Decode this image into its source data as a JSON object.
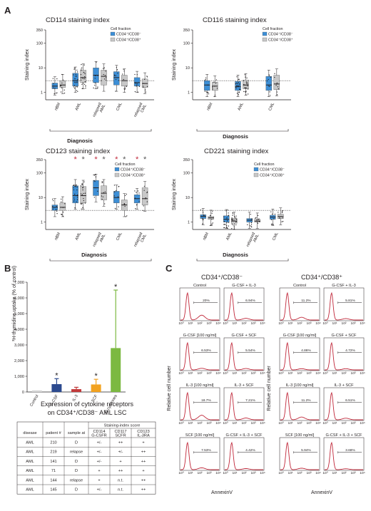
{
  "panels": {
    "A": {
      "label": "A",
      "legend_title": "Cell fraction",
      "legend_items": [
        "CD34⁺/CD38⁻",
        "CD34⁺/CD38⁺"
      ],
      "y_axis_label": "Staining index",
      "y_ticks": [
        "350",
        "100",
        "10",
        "1"
      ],
      "x_title": "Diagnosis",
      "colors": {
        "cd38neg": "#3d8fd6",
        "cd38pos": "#c8c8c8"
      },
      "subplots": [
        {
          "title": "CD114 staining index",
          "groups": [
            "nBM",
            "AML",
            "relapsed AML",
            "CML",
            "relapsed CML"
          ],
          "significant": [
            false,
            false,
            false,
            false,
            false
          ],
          "boxes": [
            {
              "neg": [
                1.4,
                1.8,
                2.4
              ],
              "pos": [
                1.6,
                2.0,
                3.0
              ]
            },
            {
              "neg": [
                1.8,
                3.0,
                6.0
              ],
              "pos": [
                2.5,
                4.0,
                8.0
              ]
            },
            {
              "neg": [
                2.5,
                5.0,
                10.0
              ],
              "pos": [
                2.0,
                4.5,
                8.0
              ]
            },
            {
              "neg": [
                2.0,
                4.0,
                7.0
              ],
              "pos": [
                1.8,
                3.0,
                5.0
              ]
            },
            {
              "neg": [
                1.8,
                2.5,
                4.0
              ],
              "pos": [
                1.6,
                2.3,
                3.5
              ]
            }
          ]
        },
        {
          "title": "CD116 staining index",
          "groups": [
            "nBM",
            "AML",
            "CML"
          ],
          "significant": [
            false,
            false,
            false
          ],
          "boxes": [
            {
              "neg": [
                1.2,
                2.0,
                3.0
              ],
              "pos": [
                1.2,
                1.8,
                2.6
              ]
            },
            {
              "neg": [
                1.2,
                1.7,
                2.8
              ],
              "pos": [
                1.4,
                2.0,
                3.2
              ]
            },
            {
              "neg": [
                1.2,
                2.0,
                4.5
              ],
              "pos": [
                1.3,
                2.2,
                5.0
              ]
            }
          ]
        },
        {
          "title": "CD123 staining index",
          "groups": [
            "nBM",
            "AML",
            "relapsed AML",
            "CML",
            "relapsed CML"
          ],
          "significant": [
            false,
            true,
            true,
            true,
            true
          ],
          "boxes": [
            {
              "neg": [
                3.0,
                4.0,
                5.0
              ],
              "pos": [
                3.0,
                4.0,
                6.0
              ]
            },
            {
              "neg": [
                6.0,
                12.0,
                30.0
              ],
              "pos": [
                6.0,
                12.0,
                28.0
              ]
            },
            {
              "neg": [
                12.0,
                25.0,
                50.0
              ],
              "pos": [
                8.0,
                15.0,
                30.0
              ]
            },
            {
              "neg": [
                6.0,
                10.0,
                18.0
              ],
              "pos": [
                3.0,
                5.0,
                8.0
              ]
            },
            {
              "neg": [
                6.0,
                9.0,
                13.0
              ],
              "pos": [
                5.0,
                9.0,
                25.0
              ]
            }
          ]
        },
        {
          "title": "CD221 staining index",
          "groups": [
            "nBM",
            "AML",
            "relapsed AML",
            "CML"
          ],
          "significant": [
            false,
            false,
            false,
            false
          ],
          "boxes": [
            {
              "neg": [
                1.4,
                1.7,
                2.0
              ],
              "pos": [
                1.3,
                1.5,
                1.7
              ]
            },
            {
              "neg": [
                1.0,
                1.3,
                1.8
              ],
              "pos": [
                0.9,
                1.1,
                1.4
              ]
            },
            {
              "neg": [
                1.0,
                1.2,
                1.4
              ],
              "pos": [
                1.0,
                1.1,
                1.3
              ]
            },
            {
              "neg": [
                1.3,
                1.6,
                1.9
              ],
              "pos": [
                1.4,
                1.7,
                2.1
              ]
            }
          ]
        }
      ]
    },
    "B": {
      "label": "B",
      "ylabel": "³H-thymidine uptake (% of control)",
      "yticks": [
        "7,000",
        "6,000",
        "5,000",
        "4,000",
        "3,000",
        "2,000",
        "1,000",
        "0"
      ],
      "table_title_line1": "Expression of cytokine receptors",
      "table_title_line2": "on CD34⁺/CD38⁻ AML LSC",
      "staining_header": "Staining-index score",
      "columns": [
        "disease",
        "patient #",
        "sample at",
        "CD114 G-CSFR",
        "CD117 SCFR",
        "CD123 IL-3RA"
      ],
      "rows": [
        [
          "AML",
          "210",
          "D",
          "+/-",
          "++",
          "+"
        ],
        [
          "AML",
          "219",
          "relapse",
          "+/-",
          "+/-",
          "++"
        ],
        [
          "AML",
          "141",
          "D",
          "+/-",
          "+",
          "++"
        ],
        [
          "AML",
          "71",
          "D",
          "+",
          "++",
          "+"
        ],
        [
          "AML",
          "144",
          "relapse",
          "+",
          "n.t.",
          "++"
        ],
        [
          "AML",
          "145",
          "D",
          "+/-",
          "n.t.",
          "++"
        ]
      ]
    },
    "C": {
      "label": "C",
      "y_axis_label": "Relative cell number",
      "x_axis_label": "AnnexinV",
      "x_ticks": [
        "10⁰",
        "10¹",
        "10²",
        "10³",
        "10⁴"
      ],
      "columns": [
        {
          "title": "CD34⁺/CD38⁻",
          "histograms": [
            {
              "label": "Control",
              "pct": "20%"
            },
            {
              "label": "G-CSF + IL-3",
              "pct": "6.94%"
            },
            {
              "label": "G-CSF [100 ng/ml]",
              "pct": "6.53%"
            },
            {
              "label": "G-CSF + SCF",
              "pct": "5.54%"
            },
            {
              "label": "IL-3 [100 ng/ml]",
              "pct": "18.7%"
            },
            {
              "label": "IL-3 + SCF",
              "pct": "7.21%"
            },
            {
              "label": "SCF [100 ng/ml]",
              "pct": "7.53%"
            },
            {
              "label": "G-CSF + IL-3 + SCF",
              "pct": "4.42%"
            }
          ]
        },
        {
          "title": "CD34⁺/CD38⁺",
          "histograms": [
            {
              "label": "Control",
              "pct": "11.2%"
            },
            {
              "label": "G-CSF + IL-3",
              "pct": "5.81%"
            },
            {
              "label": "G-CSF [100 ng/ml]",
              "pct": "4.86%"
            },
            {
              "label": "G-CSF + SCF",
              "pct": "4.72%"
            },
            {
              "label": "IL-3 [100 ng/ml]",
              "pct": "11.2%"
            },
            {
              "label": "IL-3 + SCF",
              "pct": "6.51%"
            },
            {
              "label": "SCF [100 ng/ml]",
              "pct": "5.94%"
            },
            {
              "label": "G-CSF + IL-3 + SCF",
              "pct": "3.68%"
            }
          ]
        }
      ]
    }
  },
  "chart_data": [
    {
      "type": "bar",
      "categories": [
        "Control",
        "G-CSF",
        "IL-3",
        "SCF",
        "all cytokines"
      ],
      "values": [
        100,
        500,
        180,
        480,
        2800
      ],
      "errors": [
        0,
        350,
        120,
        330,
        3700
      ],
      "significant": [
        false,
        true,
        false,
        true,
        true
      ],
      "colors": [
        "#d4d4d4",
        "#2c4a8f",
        "#c23b3b",
        "#f2a21f",
        "#7cb941"
      ],
      "ylim": [
        0,
        7000
      ]
    }
  ]
}
